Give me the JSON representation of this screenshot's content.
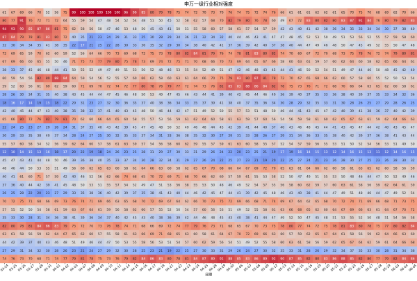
{
  "chart_data": {
    "type": "heatmap",
    "title": "申万一级行业相对强度",
    "xlabel": "日期",
    "colormap": "coolwarm",
    "zlim": [
      0,
      100
    ],
    "x": [
      "03-24",
      "03-25",
      "03-26",
      "03-27",
      "03-28",
      "03-31",
      "04-01",
      "04-02",
      "04-03",
      "04-07",
      "04-08",
      "04-09",
      "04-10",
      "04-11",
      "04-14",
      "04-15",
      "04-16",
      "04-17",
      "04-18",
      "04-21",
      "04-22",
      "04-23",
      "04-24",
      "04-25",
      "04-28",
      "04-29",
      "04-30",
      "05-06",
      "05-07",
      "05-08",
      "05-09",
      "05-12",
      "05-13",
      "05-14",
      "05-15",
      "05-16",
      "05-19",
      "05-20",
      "05-21",
      "05-22",
      "05-23",
      "05-26",
      "05-27",
      "05-28",
      "05-29",
      "06-03",
      "06-04",
      "06-05"
    ],
    "values": [
      [
        61,
        67,
        69,
        66,
        70,
        52,
        56,
        75,
        99,
        100,
        100,
        100,
        100,
        100,
        96,
        90,
        85,
        80,
        79,
        78,
        75,
        74,
        72,
        70,
        73,
        70,
        76,
        74,
        75,
        72,
        74,
        76,
        66,
        61,
        61,
        61,
        62,
        62,
        61,
        65,
        70,
        75,
        70,
        68,
        69,
        62,
        70,
        66
      ],
      [
        80,
        77,
        91,
        76,
        72,
        71,
        72,
        64,
        55,
        59,
        54,
        47,
        48,
        54,
        52,
        54,
        48,
        51,
        50,
        45,
        52,
        58,
        62,
        57,
        68,
        70,
        82,
        79,
        80,
        76,
        78,
        60,
        49,
        67,
        72,
        83,
        80,
        82,
        80,
        83,
        87,
        91,
        84,
        76,
        80,
        79,
        82,
        83
      ],
      [
        94,
        93,
        90,
        85,
        87,
        86,
        81,
        75,
        62,
        58,
        56,
        50,
        47,
        46,
        53,
        48,
        50,
        45,
        43,
        41,
        50,
        51,
        55,
        58,
        60,
        57,
        58,
        61,
        57,
        54,
        57,
        59,
        42,
        43,
        40,
        41,
        42,
        38,
        36,
        34,
        35,
        33,
        34,
        34,
        30,
        37,
        38,
        40
      ],
      [
        87,
        84,
        79,
        78,
        81,
        83,
        80,
        72,
        40,
        35,
        21,
        23,
        24,
        29,
        31,
        33,
        25,
        30,
        28,
        29,
        34,
        36,
        31,
        32,
        34,
        32,
        40,
        44,
        46,
        43,
        41,
        47,
        47,
        48,
        45,
        52,
        53,
        50,
        49,
        51,
        53,
        56,
        52,
        55,
        57,
        59,
        58,
        60
      ],
      [
        32,
        30,
        34,
        34,
        35,
        41,
        38,
        35,
        22,
        17,
        21,
        25,
        22,
        28,
        30,
        33,
        36,
        35,
        32,
        29,
        30,
        34,
        38,
        40,
        42,
        41,
        37,
        36,
        39,
        42,
        40,
        37,
        38,
        40,
        44,
        47,
        49,
        46,
        48,
        50,
        47,
        45,
        49,
        52,
        55,
        50,
        47,
        48
      ],
      [
        72,
        69,
        65,
        59,
        70,
        62,
        60,
        59,
        52,
        56,
        64,
        66,
        70,
        73,
        69,
        68,
        72,
        75,
        73,
        78,
        80,
        82,
        84,
        81,
        79,
        76,
        74,
        78,
        81,
        83,
        80,
        82,
        74,
        70,
        69,
        67,
        72,
        70,
        68,
        73,
        75,
        78,
        76,
        72,
        74,
        79,
        80,
        81
      ],
      [
        67,
        69,
        66,
        60,
        65,
        55,
        50,
        46,
        71,
        75,
        73,
        77,
        79,
        80,
        75,
        78,
        73,
        69,
        74,
        72,
        75,
        71,
        70,
        68,
        66,
        70,
        73,
        69,
        64,
        65,
        67,
        66,
        58,
        60,
        63,
        61,
        59,
        57,
        60,
        62,
        64,
        60,
        58,
        62,
        65,
        66,
        64,
        61
      ],
      [
        38,
        33,
        37,
        45,
        46,
        48,
        44,
        41,
        50,
        55,
        52,
        49,
        47,
        49,
        51,
        53,
        50,
        52,
        48,
        46,
        53,
        55,
        54,
        52,
        49,
        51,
        47,
        42,
        46,
        48,
        43,
        45,
        44,
        41,
        46,
        50,
        52,
        54,
        51,
        49,
        47,
        44,
        46,
        50,
        48,
        45,
        42,
        40
      ],
      [
        60,
        59,
        54,
        56,
        82,
        80,
        88,
        84,
        64,
        59,
        54,
        56,
        52,
        55,
        57,
        60,
        66,
        62,
        58,
        60,
        63,
        61,
        64,
        66,
        70,
        75,
        79,
        83,
        80,
        87,
        81,
        78,
        72,
        70,
        67,
        65,
        68,
        66,
        62,
        60,
        57,
        58,
        60,
        55,
        52,
        50,
        53,
        54
      ],
      [
        59,
        52,
        60,
        56,
        61,
        69,
        62,
        59,
        60,
        71,
        69,
        70,
        72,
        74,
        72,
        77,
        80,
        78,
        76,
        79,
        77,
        72,
        74,
        73,
        76,
        81,
        85,
        83,
        88,
        86,
        84,
        82,
        78,
        75,
        73,
        76,
        71,
        72,
        68,
        70,
        66,
        64,
        63,
        65,
        62,
        60,
        58,
        61
      ],
      [
        28,
        26,
        30,
        34,
        31,
        35,
        40,
        38,
        43,
        45,
        44,
        44,
        47,
        45,
        46,
        48,
        50,
        53,
        49,
        47,
        45,
        46,
        43,
        44,
        41,
        39,
        40,
        42,
        45,
        44,
        46,
        40,
        36,
        39,
        40,
        37,
        35,
        33,
        36,
        38,
        40,
        39,
        37,
        35,
        33,
        34,
        32,
        36
      ],
      [
        18,
        16,
        17,
        14,
        19,
        15,
        18,
        22,
        29,
        31,
        23,
        27,
        32,
        30,
        36,
        35,
        37,
        40,
        38,
        36,
        34,
        33,
        35,
        37,
        39,
        41,
        38,
        40,
        37,
        35,
        36,
        34,
        30,
        28,
        29,
        32,
        35,
        33,
        31,
        30,
        28,
        26,
        25,
        27,
        29,
        28,
        26,
        25
      ],
      [
        42,
        40,
        45,
        44,
        47,
        43,
        40,
        38,
        35,
        38,
        32,
        37,
        41,
        40,
        43,
        45,
        48,
        50,
        46,
        44,
        42,
        47,
        51,
        49,
        52,
        50,
        55,
        57,
        53,
        51,
        48,
        50,
        46,
        44,
        41,
        43,
        45,
        47,
        42,
        40,
        39,
        41,
        38,
        36,
        37,
        40,
        42,
        39
      ],
      [
        65,
        66,
        80,
        72,
        76,
        82,
        79,
        81,
        70,
        62,
        60,
        66,
        64,
        65,
        60,
        58,
        55,
        57,
        53,
        56,
        59,
        61,
        62,
        64,
        60,
        58,
        61,
        63,
        59,
        57,
        60,
        56,
        54,
        56,
        59,
        58,
        61,
        60,
        62,
        65,
        67,
        63,
        61,
        59,
        62,
        64,
        66,
        63
      ],
      [
        22,
        24,
        25,
        23,
        27,
        29,
        26,
        24,
        31,
        37,
        35,
        40,
        43,
        42,
        39,
        45,
        47,
        45,
        48,
        50,
        52,
        49,
        46,
        48,
        44,
        45,
        42,
        39,
        41,
        44,
        40,
        37,
        40,
        43,
        46,
        48,
        45,
        44,
        41,
        43,
        45,
        47,
        44,
        42,
        40,
        43,
        45,
        47
      ],
      [
        30,
        29,
        33,
        35,
        38,
        40,
        37,
        34,
        28,
        24,
        27,
        25,
        30,
        32,
        35,
        33,
        37,
        34,
        31,
        33,
        36,
        38,
        35,
        32,
        30,
        27,
        29,
        31,
        33,
        28,
        26,
        27,
        29,
        31,
        34,
        36,
        33,
        35,
        38,
        40,
        42,
        39,
        37,
        36,
        38,
        41,
        43,
        44
      ],
      [
        55,
        57,
        60,
        58,
        54,
        52,
        56,
        59,
        62,
        64,
        60,
        57,
        58,
        61,
        63,
        59,
        57,
        54,
        56,
        58,
        60,
        62,
        59,
        55,
        57,
        59,
        61,
        63,
        60,
        58,
        55,
        57,
        52,
        54,
        57,
        59,
        56,
        55,
        53,
        51,
        50,
        52,
        54,
        56,
        53,
        51,
        49,
        50
      ],
      [
        12,
        10,
        14,
        15,
        13,
        16,
        18,
        17,
        20,
        22,
        19,
        18,
        24,
        26,
        23,
        25,
        28,
        31,
        29,
        27,
        30,
        33,
        31,
        29,
        26,
        24,
        22,
        20,
        23,
        25,
        21,
        19,
        17,
        19,
        16,
        14,
        15,
        13,
        12,
        14,
        16,
        15,
        13,
        11,
        12,
        14,
        16,
        15
      ],
      [
        45,
        47,
        43,
        41,
        44,
        48,
        50,
        46,
        39,
        36,
        38,
        40,
        35,
        33,
        37,
        34,
        30,
        28,
        32,
        34,
        31,
        29,
        27,
        26,
        24,
        22,
        25,
        27,
        23,
        21,
        19,
        20,
        22,
        25,
        27,
        24,
        21,
        23,
        26,
        28,
        30,
        27,
        25,
        23,
        26,
        28,
        30,
        32
      ],
      [
        48,
        46,
        44,
        50,
        53,
        55,
        51,
        49,
        56,
        60,
        62,
        65,
        63,
        60,
        58,
        61,
        64,
        66,
        63,
        60,
        58,
        62,
        65,
        67,
        70,
        68,
        66,
        64,
        67,
        69,
        72,
        70,
        65,
        63,
        61,
        64,
        66,
        62,
        60,
        58,
        61,
        63,
        65,
        62,
        60,
        58,
        56,
        59
      ],
      [
        40,
        41,
        61,
        60,
        71,
        57,
        59,
        42,
        40,
        46,
        52,
        56,
        62,
        66,
        74,
        68,
        65,
        70,
        72,
        69,
        71,
        68,
        70,
        66,
        62,
        60,
        57,
        59,
        61,
        55,
        53,
        58,
        52,
        50,
        47,
        49,
        51,
        55,
        53,
        50,
        48,
        46,
        44,
        47,
        50,
        52,
        49,
        46
      ],
      [
        37,
        36,
        40,
        44,
        42,
        39,
        41,
        45,
        48,
        50,
        53,
        51,
        55,
        57,
        54,
        52,
        49,
        47,
        51,
        53,
        56,
        58,
        55,
        53,
        50,
        48,
        46,
        49,
        52,
        54,
        57,
        55,
        56,
        58,
        60,
        62,
        59,
        57,
        60,
        63,
        61,
        58,
        56,
        59,
        62,
        64,
        61,
        59
      ],
      [
        26,
        25,
        28,
        22,
        20,
        23,
        27,
        29,
        33,
        35,
        38,
        36,
        40,
        42,
        39,
        37,
        35,
        38,
        41,
        43,
        40,
        44,
        46,
        42,
        45,
        47,
        44,
        41,
        39,
        42,
        45,
        48,
        46,
        43,
        40,
        38,
        41,
        44,
        47,
        49,
        51,
        48,
        46,
        44,
        47,
        49,
        52,
        54
      ],
      [
        70,
        72,
        75,
        71,
        68,
        66,
        69,
        73,
        76,
        74,
        71,
        69,
        66,
        63,
        65,
        68,
        70,
        72,
        69,
        67,
        64,
        62,
        66,
        70,
        73,
        75,
        72,
        69,
        66,
        68,
        71,
        74,
        69,
        67,
        64,
        62,
        65,
        68,
        70,
        72,
        74,
        71,
        69,
        66,
        68,
        71,
        73,
        75
      ],
      [
        57,
        55,
        52,
        50,
        54,
        58,
        61,
        59,
        63,
        67,
        64,
        61,
        59,
        56,
        58,
        62,
        60,
        57,
        55,
        52,
        50,
        54,
        57,
        60,
        56,
        53,
        51,
        49,
        52,
        55,
        58,
        61,
        63,
        66,
        68,
        65,
        62,
        60,
        64,
        67,
        69,
        66,
        63,
        61,
        64,
        67,
        70,
        72
      ],
      [
        35,
        33,
        30,
        28,
        31,
        34,
        36,
        38,
        41,
        39,
        36,
        34,
        37,
        40,
        42,
        45,
        43,
        40,
        38,
        36,
        39,
        42,
        44,
        46,
        48,
        45,
        43,
        40,
        38,
        41,
        44,
        47,
        49,
        52,
        50,
        47,
        45,
        48,
        51,
        53,
        55,
        52,
        50,
        48,
        51,
        54,
        56,
        58
      ],
      [
        82,
        80,
        78,
        81,
        84,
        86,
        83,
        79,
        75,
        72,
        70,
        73,
        76,
        78,
        74,
        71,
        68,
        66,
        69,
        72,
        74,
        77,
        79,
        76,
        73,
        71,
        68,
        65,
        67,
        70,
        73,
        75,
        78,
        80,
        77,
        74,
        72,
        75,
        78,
        81,
        83,
        80,
        78,
        75,
        77,
        80,
        82,
        84
      ],
      [
        63,
        61,
        58,
        56,
        59,
        62,
        64,
        67,
        65,
        62,
        60,
        57,
        55,
        58,
        61,
        63,
        66,
        69,
        71,
        68,
        65,
        63,
        60,
        58,
        61,
        64,
        67,
        70,
        72,
        69,
        66,
        63,
        60,
        57,
        59,
        62,
        65,
        67,
        64,
        61,
        58,
        56,
        59,
        62,
        64,
        66,
        63,
        60
      ],
      [
        44,
        42,
        39,
        37,
        40,
        43,
        46,
        48,
        51,
        49,
        46,
        44,
        47,
        50,
        53,
        55,
        58,
        56,
        53,
        51,
        54,
        57,
        60,
        62,
        59,
        56,
        54,
        51,
        49,
        52,
        55,
        58,
        60,
        63,
        61,
        58,
        56,
        59,
        62,
        65,
        67,
        64,
        62,
        59,
        61,
        64,
        66,
        68
      ],
      [
        27,
        29,
        31,
        34,
        32,
        30,
        28,
        26,
        23,
        21,
        24,
        27,
        29,
        32,
        30,
        28,
        25,
        23,
        21,
        19,
        22,
        25,
        27,
        30,
        33,
        31,
        29,
        26,
        24,
        27,
        30,
        32,
        35,
        33,
        31,
        28,
        26,
        29,
        32,
        34,
        37,
        35,
        33,
        30,
        28,
        31,
        34,
        36
      ],
      [
        74,
        76,
        73,
        70,
        68,
        71,
        74,
        77,
        79,
        81,
        78,
        75,
        73,
        76,
        79,
        82,
        84,
        86,
        83,
        80,
        78,
        81,
        84,
        87,
        89,
        91,
        88,
        85,
        83,
        86,
        89,
        92,
        90,
        87,
        85,
        82,
        80,
        83,
        86,
        88,
        85,
        82,
        80,
        77,
        79,
        82,
        84,
        86
      ]
    ]
  }
}
